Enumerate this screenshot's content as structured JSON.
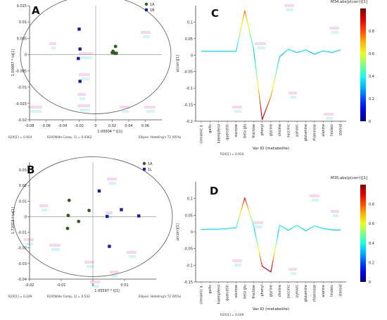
{
  "colors": {
    "group_1a": "#2e5e1e",
    "group_1b": "#1a1aa8",
    "axis": "#444444",
    "ellipse": "#555555",
    "watermark_pink": "#f3b6de",
    "watermark_cyan": "#a8eef3"
  },
  "chart_data": [
    {
      "panel": "A",
      "type": "scatter",
      "xlabel": "1.00004 * t[1]",
      "ylabel": "1.00987 * to[1]",
      "xlim": [
        -0.08,
        0.08
      ],
      "ylim": [
        -0.02,
        0.015
      ],
      "xticks": [
        "-0.08",
        "-0.06",
        "-0.04",
        "-0.02",
        "0",
        "0.02",
        "0.04",
        "0.06"
      ],
      "yticks": [
        "-0.02",
        "-0.015",
        "-0.01",
        "-0.005",
        "0",
        "0.005",
        "0.01",
        "0.015"
      ],
      "legend": [
        "1A",
        "1B"
      ],
      "series": [
        {
          "name": "1A",
          "points": [
            [
              0.021,
              0.001
            ],
            [
              0.024,
              0.0025
            ],
            [
              0.023,
              0.0004
            ],
            [
              0.02,
              0.0006
            ],
            [
              0.025,
              0.0004
            ]
          ]
        },
        {
          "name": "1B",
          "points": [
            [
              -0.02,
              0.0078
            ],
            [
              -0.019,
              0.0017
            ],
            [
              -0.021,
              -0.0012
            ],
            [
              -0.019,
              -0.0082
            ]
          ]
        }
      ],
      "footer": [
        "R2X[1] = 0.924",
        "R2X[Wide Comp. 1] = 0.0362",
        "Ellipse: Hotelling's T2 (95%)"
      ]
    },
    {
      "panel": "B",
      "type": "scatter",
      "xlabel": "1.05597 * t[1]",
      "ylabel": "1.72019 * to[1]",
      "xlim": [
        -0.02,
        0.02
      ],
      "ylim": [
        -0.04,
        0.035
      ],
      "xticks": [
        "-0.02",
        "-0.01",
        "0",
        "0.01"
      ],
      "yticks": [
        "-0.04",
        "-0.03",
        "-0.02",
        "-0.01",
        "0",
        "0.01",
        "0.02",
        "0.03"
      ],
      "legend": [
        "1A",
        "1L"
      ],
      "series": [
        {
          "name": "1A",
          "points": [
            [
              -0.0075,
              0.0105
            ],
            [
              -0.0078,
              0.0008
            ],
            [
              -0.008,
              -0.0075
            ],
            [
              -0.0045,
              -0.003
            ],
            [
              -0.0012,
              0.004
            ]
          ]
        },
        {
          "name": "1L",
          "points": [
            [
              0.002,
              0.0165
            ],
            [
              0.009,
              0.0045
            ],
            [
              0.0145,
              0.0005
            ],
            [
              0.0045,
              0.0002
            ],
            [
              0.0052,
              -0.019
            ]
          ]
        }
      ],
      "footer": [
        "R2X[1] = 0.249",
        "R2X[Wide Comp. 1] = 0.533",
        "Ellipse: Hotelling's T2 (95%)"
      ]
    },
    {
      "panel": "C",
      "type": "line",
      "title": "M34.abs(p(corr))[1]",
      "xlabel": "Var ID (metabolite)",
      "ylabel": "p(corr)[1]",
      "ylim": [
        -0.2,
        0.15
      ],
      "yticks": [
        "-0.2",
        "-0.15",
        "-0.1",
        "-0.05",
        "0",
        "0.05",
        "0.1"
      ],
      "categories": [
        "cinnamic a.",
        "gallic",
        "kaempferol",
        "quercetin",
        "sucrose",
        "beta glu",
        "fructose",
        "phenyl",
        "glycine",
        "choline",
        "succinic",
        "pyruvic",
        "glutamine",
        "rhamnose",
        "alanine",
        "linoleic",
        "steroid"
      ],
      "values": [
        0.012,
        0.012,
        0.012,
        0.012,
        0.012,
        0.135,
        0.02,
        -0.195,
        -0.125,
        -0.005,
        0.018,
        0.008,
        0.016,
        0.003,
        0.013,
        0.008,
        0.016
      ],
      "colorbar": {
        "ticks": [
          "0",
          "0.2",
          "0.4",
          "0.6",
          "0.8"
        ],
        "range": [
          0,
          1
        ]
      },
      "footer": "R2X[1] = 0.914"
    },
    {
      "panel": "D",
      "type": "line",
      "title": "M35.abs(p(corr))[1]",
      "xlabel": "Var ID (metabolite)",
      "ylabel": "p(corr)[1]",
      "ylim": [
        -0.15,
        0.15
      ],
      "yticks": [
        "-0.15",
        "-0.1",
        "-0.05",
        "0",
        "0.05",
        "0.1"
      ],
      "categories": [
        "cinnamic a.",
        "gallic",
        "kaempferol",
        "quercetin",
        "sucrose",
        "beta glu",
        "fructose",
        "phenyl",
        "glycine",
        "choline",
        "succinic",
        "pyruvic",
        "glutamine",
        "rhamnose",
        "alanine",
        "linoleic",
        "steroid"
      ],
      "values": [
        0.007,
        0.008,
        0.008,
        0.01,
        0.012,
        0.102,
        0.02,
        -0.103,
        -0.12,
        0.02,
        0.005,
        0.02,
        0.003,
        0.018,
        0.01,
        0.006,
        0.006
      ],
      "colorbar": {
        "ticks": [
          "0",
          "0.2",
          "0.4",
          "0.6",
          "0.8"
        ],
        "range": [
          0,
          1
        ]
      },
      "footer": "R2X[1] = 0.249"
    }
  ]
}
